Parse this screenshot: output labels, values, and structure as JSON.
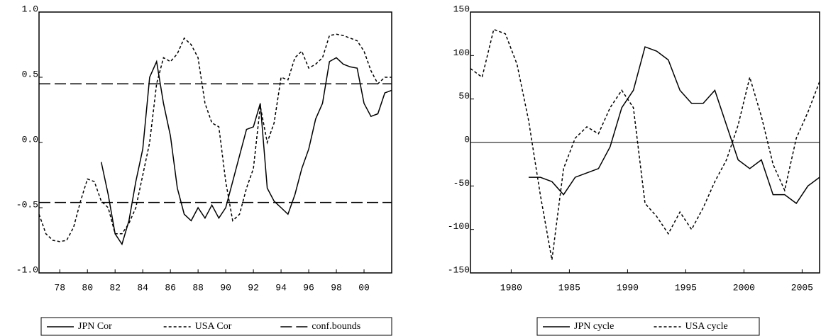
{
  "chart_data": [
    {
      "type": "line",
      "x": [
        1976.5,
        1977,
        1977.5,
        1978,
        1978.5,
        1979,
        1979.5,
        1980,
        1980.5,
        1981,
        1981.5,
        1982,
        1982.5,
        1983,
        1983.5,
        1984,
        1984.5,
        1985,
        1985.5,
        1986,
        1986.5,
        1987,
        1987.5,
        1988,
        1988.5,
        1989,
        1989.5,
        1990,
        1990.5,
        1991,
        1991.5,
        1992,
        1992.5,
        1993,
        1993.5,
        1994,
        1994.5,
        1995,
        1995.5,
        1996,
        1996.5,
        1997,
        1997.5,
        1998,
        1998.5,
        1999,
        1999.5,
        2000,
        2000.5,
        2001,
        2001.5,
        2002
      ],
      "series": [
        {
          "name": "JPN Cor",
          "color": "#000000",
          "dash": "solid",
          "values": [
            null,
            null,
            null,
            null,
            null,
            null,
            null,
            null,
            null,
            -0.15,
            -0.4,
            -0.7,
            -0.78,
            -0.6,
            -0.3,
            -0.05,
            0.5,
            0.62,
            0.3,
            0.05,
            -0.35,
            -0.55,
            -0.6,
            -0.5,
            -0.58,
            -0.48,
            -0.58,
            -0.5,
            -0.3,
            -0.1,
            0.1,
            0.12,
            0.3,
            -0.35,
            -0.45,
            -0.5,
            -0.55,
            -0.4,
            -0.2,
            -0.05,
            0.18,
            0.3,
            0.62,
            0.65,
            0.6,
            0.58,
            0.57,
            0.3,
            0.2,
            0.22,
            0.38,
            0.4
          ]
        },
        {
          "name": "USA Cor",
          "color": "#000000",
          "dash": "dashed",
          "values": [
            -0.55,
            -0.7,
            -0.75,
            -0.76,
            -0.75,
            -0.65,
            -0.45,
            -0.28,
            -0.3,
            -0.45,
            -0.5,
            -0.7,
            -0.7,
            -0.62,
            -0.5,
            -0.25,
            0.0,
            0.45,
            0.65,
            0.62,
            0.68,
            0.8,
            0.75,
            0.65,
            0.3,
            0.15,
            0.12,
            -0.3,
            -0.6,
            -0.55,
            -0.35,
            -0.2,
            0.28,
            0.0,
            0.15,
            0.5,
            0.48,
            0.65,
            0.7,
            0.57,
            0.6,
            0.65,
            0.82,
            0.83,
            0.82,
            0.8,
            0.78,
            0.7,
            0.55,
            0.45,
            0.5,
            0.5
          ]
        }
      ],
      "hlines": {
        "name": "conf.bounds",
        "color": "#000000",
        "dash": "longdash",
        "values": [
          0.45,
          -0.46
        ]
      },
      "xlim": [
        1976.5,
        2002
      ],
      "xticks": [
        {
          "value": 1978,
          "label": "78"
        },
        {
          "value": 1980,
          "label": "80"
        },
        {
          "value": 1982,
          "label": "82"
        },
        {
          "value": 1984,
          "label": "84"
        },
        {
          "value": 1986,
          "label": "86"
        },
        {
          "value": 1988,
          "label": "88"
        },
        {
          "value": 1990,
          "label": "90"
        },
        {
          "value": 1992,
          "label": "92"
        },
        {
          "value": 1994,
          "label": "94"
        },
        {
          "value": 1996,
          "label": "96"
        },
        {
          "value": 1998,
          "label": "98"
        },
        {
          "value": 2000,
          "label": "00"
        }
      ],
      "ylim": [
        -1,
        1
      ],
      "yticks": [
        {
          "value": -1,
          "label": "-1.0"
        },
        {
          "value": -0.5,
          "label": "-0.5"
        },
        {
          "value": 0,
          "label": "0.0"
        },
        {
          "value": 0.5,
          "label": "0.5"
        },
        {
          "value": 1,
          "label": "1.0"
        }
      ],
      "zero_line": false
    },
    {
      "type": "line",
      "x": [
        1976.5,
        1977.5,
        1978.5,
        1979.5,
        1980.5,
        1981.5,
        1982.5,
        1983.5,
        1984.5,
        1985.5,
        1986.5,
        1987.5,
        1988.5,
        1989.5,
        1990.5,
        1991.5,
        1992.5,
        1993.5,
        1994.5,
        1995.5,
        1996.5,
        1997.5,
        1998.5,
        1999.5,
        2000.5,
        2001.5,
        2002.5,
        2003.5,
        2004.5,
        2005.5,
        2006.5
      ],
      "series": [
        {
          "name": "JPN cycle",
          "color": "#000000",
          "dash": "solid",
          "values": [
            null,
            null,
            null,
            null,
            null,
            -40,
            -40,
            -45,
            -60,
            -40,
            -35,
            -30,
            -5,
            40,
            60,
            110,
            105,
            95,
            60,
            45,
            45,
            60,
            20,
            -20,
            -30,
            -20,
            -60,
            -60,
            -70,
            -50,
            -40
          ]
        },
        {
          "name": "USA cycle",
          "color": "#000000",
          "dash": "dashed",
          "values": [
            85,
            75,
            130,
            125,
            90,
            25,
            -60,
            -135,
            -30,
            5,
            18,
            10,
            40,
            60,
            40,
            -70,
            -85,
            -105,
            -80,
            -100,
            -75,
            -45,
            -20,
            20,
            75,
            30,
            -25,
            -55,
            5,
            35,
            70
          ]
        }
      ],
      "xlim": [
        1976.5,
        2006.5
      ],
      "xticks": [
        1980,
        1985,
        1990,
        1995,
        2000,
        2005
      ],
      "ylim": [
        -150,
        150
      ],
      "yticks": [
        -150,
        -100,
        -50,
        0,
        50,
        100,
        150
      ],
      "zero_line": true
    }
  ]
}
